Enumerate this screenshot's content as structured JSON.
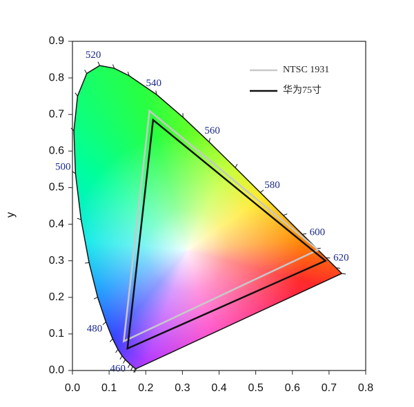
{
  "chart_data": {
    "type": "line",
    "y_label": "y",
    "xlim": [
      0,
      0.8
    ],
    "ylim": [
      0,
      0.9
    ],
    "xticks": [
      {
        "value": 0,
        "label": "0.0"
      },
      0.1,
      0.2,
      0.3,
      0.4,
      0.5,
      0.6,
      0.7,
      0.8
    ],
    "yticks": [
      {
        "value": 0,
        "label": "0.0"
      },
      0.1,
      0.2,
      0.3,
      0.4,
      0.5,
      0.6,
      0.7,
      0.8,
      0.9
    ],
    "legend": "upper right",
    "closed": true,
    "locus": {
      "labels": [
        null,
        null,
        null,
        null,
        460,
        null,
        null,
        null,
        480,
        null,
        null,
        null,
        500,
        null,
        null,
        null,
        520,
        null,
        null,
        540,
        null,
        560,
        null,
        580,
        null,
        600,
        null,
        620,
        null,
        null
      ],
      "x": [
        0.1741,
        0.1714,
        0.1644,
        0.1566,
        0.144,
        0.1355,
        0.1241,
        0.1096,
        0.0913,
        0.0687,
        0.0454,
        0.0235,
        0.0082,
        0.0039,
        0.0139,
        0.0389,
        0.0743,
        0.1142,
        0.1547,
        0.2296,
        0.3016,
        0.3731,
        0.4441,
        0.5125,
        0.5752,
        0.627,
        0.6658,
        0.6915,
        0.719,
        0.7347
      ],
      "y": [
        0.005,
        0.0051,
        0.0109,
        0.0177,
        0.0297,
        0.0399,
        0.0578,
        0.0868,
        0.1327,
        0.2007,
        0.295,
        0.4127,
        0.5384,
        0.6548,
        0.7502,
        0.812,
        0.8338,
        0.8262,
        0.8059,
        0.7543,
        0.6923,
        0.6245,
        0.5547,
        0.4866,
        0.4242,
        0.3725,
        0.334,
        0.3083,
        0.2809,
        0.2653
      ]
    },
    "series": [
      {
        "name": "NTSC 1931",
        "color": "#c8c8c8",
        "x": [
          0.67,
          0.21,
          0.14
        ],
        "values": [
          0.33,
          0.71,
          0.08
        ]
      },
      {
        "name": "华为75寸",
        "color": "#111111",
        "x": [
          0.69,
          0.22,
          0.15
        ],
        "values": [
          0.3,
          0.685,
          0.06
        ]
      }
    ]
  }
}
